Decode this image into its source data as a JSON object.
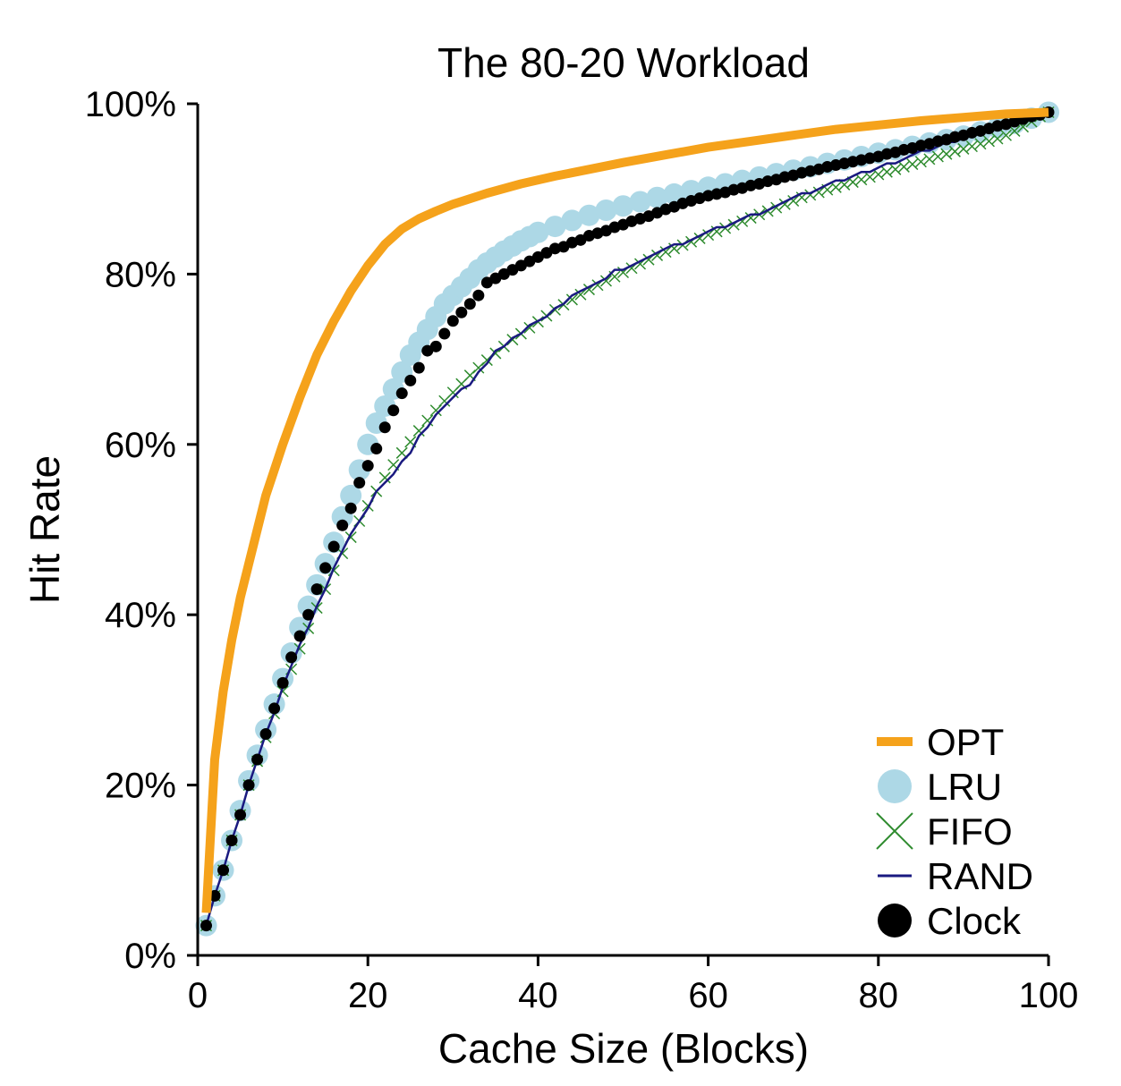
{
  "chart_data": {
    "type": "line",
    "title": "The 80-20 Workload",
    "xlabel": "Cache Size (Blocks)",
    "ylabel": "Hit Rate",
    "xlim": [
      0,
      100
    ],
    "ylim": [
      0,
      100
    ],
    "xticks": [
      0,
      20,
      40,
      60,
      80,
      100
    ],
    "yticks": [
      0,
      20,
      40,
      60,
      80,
      100
    ],
    "xtick_labels": [
      "0",
      "20",
      "40",
      "60",
      "80",
      "100"
    ],
    "ytick_labels": [
      "0%",
      "20%",
      "40%",
      "60%",
      "80%",
      "100%"
    ],
    "legend_position": "bottom-right",
    "grid": false,
    "series": [
      {
        "name": "OPT",
        "style": "thick-line",
        "color": "#f5a21b",
        "x": [
          1,
          2,
          3,
          4,
          5,
          6,
          7,
          8,
          9,
          10,
          12,
          14,
          16,
          18,
          20,
          22,
          24,
          26,
          28,
          30,
          34,
          38,
          42,
          46,
          50,
          55,
          60,
          65,
          70,
          75,
          80,
          85,
          90,
          95,
          100
        ],
        "y": [
          5,
          23,
          31,
          37,
          42,
          46,
          50,
          54,
          57,
          60,
          65.5,
          70.5,
          74.5,
          78,
          81,
          83.5,
          85.3,
          86.5,
          87.4,
          88.2,
          89.5,
          90.6,
          91.5,
          92.3,
          93.1,
          94,
          94.9,
          95.6,
          96.3,
          97,
          97.5,
          98,
          98.4,
          98.8,
          99
        ]
      },
      {
        "name": "LRU",
        "style": "large-dots",
        "color": "#add8e6",
        "x": [
          1,
          2,
          3,
          4,
          5,
          6,
          7,
          8,
          9,
          10,
          11,
          12,
          13,
          14,
          15,
          16,
          17,
          18,
          19,
          20,
          21,
          22,
          23,
          24,
          25,
          26,
          27,
          28,
          29,
          30,
          31,
          32,
          33,
          34,
          35,
          36,
          37,
          38,
          39,
          40,
          42,
          44,
          46,
          48,
          50,
          52,
          54,
          56,
          58,
          60,
          62,
          64,
          66,
          68,
          70,
          72,
          74,
          76,
          78,
          80,
          82,
          84,
          86,
          88,
          90,
          92,
          94,
          96,
          98,
          100
        ],
        "y": [
          3.5,
          7,
          10,
          13.5,
          17,
          20.5,
          23.5,
          26.5,
          29.5,
          32.5,
          35.5,
          38.5,
          41,
          43.5,
          46,
          48.5,
          51.5,
          54,
          57,
          60,
          62.5,
          64.5,
          66.5,
          68.5,
          70.5,
          72,
          73.5,
          75,
          76.5,
          77.5,
          78.5,
          79.5,
          80.5,
          81.3,
          82,
          82.7,
          83.3,
          83.9,
          84.4,
          84.9,
          85.6,
          86.3,
          86.9,
          87.5,
          88,
          88.5,
          89,
          89.4,
          89.8,
          90.2,
          90.6,
          91,
          91.4,
          91.8,
          92.2,
          92.6,
          93,
          93.4,
          93.8,
          94.2,
          94.6,
          95,
          95.4,
          95.8,
          96.2,
          96.7,
          97.2,
          97.7,
          98.3,
          99
        ]
      },
      {
        "name": "FIFO",
        "style": "x-markers",
        "color": "#2e8b2e",
        "x": [
          1,
          2,
          3,
          4,
          5,
          6,
          7,
          8,
          9,
          10,
          11,
          12,
          13,
          14,
          15,
          16,
          17,
          18,
          19,
          20,
          21,
          22,
          23,
          24,
          25,
          26,
          27,
          28,
          29,
          30,
          31,
          32,
          33,
          34,
          35,
          36,
          37,
          38,
          39,
          40,
          41,
          42,
          43,
          44,
          45,
          46,
          47,
          48,
          49,
          50,
          51,
          52,
          53,
          54,
          55,
          56,
          57,
          58,
          59,
          60,
          61,
          62,
          63,
          64,
          65,
          66,
          67,
          68,
          69,
          70,
          71,
          72,
          73,
          74,
          75,
          76,
          77,
          78,
          79,
          80,
          81,
          82,
          83,
          84,
          85,
          86,
          87,
          88,
          89,
          90,
          91,
          92,
          93,
          94,
          95,
          96,
          97,
          98,
          99,
          100
        ],
        "y": [
          3.5,
          7,
          10,
          13.5,
          16.5,
          20,
          22.8,
          25.6,
          28.4,
          31,
          33.6,
          36,
          38.4,
          40.8,
          43,
          45.2,
          47.2,
          49.1,
          51,
          52.8,
          54.5,
          56.1,
          57.6,
          59,
          60.3,
          61.6,
          62.8,
          64,
          65.1,
          66.1,
          67.1,
          68.1,
          69,
          69.9,
          70.7,
          71.5,
          72.3,
          73,
          73.7,
          74.4,
          75.1,
          75.8,
          76.4,
          77,
          77.6,
          78.2,
          78.7,
          79.2,
          79.7,
          80.2,
          80.7,
          81.2,
          81.7,
          82.2,
          82.6,
          83,
          83.4,
          83.8,
          84.2,
          84.6,
          85,
          85.4,
          85.8,
          86.2,
          86.6,
          87,
          87.4,
          87.8,
          88.2,
          88.6,
          89,
          89.3,
          89.6,
          89.9,
          90.2,
          90.5,
          90.8,
          91.1,
          91.4,
          91.7,
          92,
          92.3,
          92.6,
          92.9,
          93.2,
          93.5,
          93.8,
          94.1,
          94.4,
          94.7,
          95,
          95.3,
          95.6,
          95.9,
          96.3,
          96.8,
          97.3,
          97.9,
          98.5,
          99
        ]
      },
      {
        "name": "RAND",
        "style": "thin-line",
        "color": "#1a1a80",
        "x": [
          1,
          2,
          3,
          4,
          5,
          6,
          7,
          8,
          9,
          10,
          11,
          12,
          13,
          14,
          15,
          16,
          17,
          18,
          19,
          20,
          21,
          22,
          23,
          24,
          25,
          26,
          27,
          28,
          29,
          30,
          31,
          32,
          33,
          34,
          35,
          36,
          37,
          38,
          39,
          40,
          41,
          42,
          43,
          44,
          45,
          46,
          47,
          48,
          49,
          50,
          51,
          52,
          53,
          54,
          55,
          56,
          57,
          58,
          59,
          60,
          61,
          62,
          63,
          64,
          65,
          66,
          67,
          68,
          69,
          70,
          71,
          72,
          73,
          74,
          75,
          76,
          77,
          78,
          79,
          80,
          81,
          82,
          83,
          84,
          85,
          86,
          87,
          88,
          89,
          90,
          91,
          92,
          93,
          94,
          95,
          96,
          97,
          98,
          99,
          100
        ],
        "y": [
          3.5,
          7,
          10,
          13.5,
          16.5,
          20,
          23,
          26,
          28.5,
          31.5,
          34,
          36.5,
          38.5,
          41,
          43,
          45.5,
          47.5,
          49.5,
          51,
          52.5,
          54.5,
          55.5,
          56.5,
          58,
          59,
          61,
          62,
          63.5,
          64.5,
          65.5,
          66.5,
          67,
          68.5,
          69.5,
          71,
          71.5,
          72.5,
          73,
          74,
          74.5,
          75,
          76,
          76.5,
          77.5,
          78,
          78.5,
          79,
          79.5,
          80.5,
          80.5,
          81,
          81.5,
          82,
          82.5,
          83,
          83.5,
          83.5,
          84,
          84.5,
          85,
          85.5,
          85.5,
          86,
          86.5,
          87,
          87,
          87.5,
          88,
          88.5,
          89,
          89.5,
          89.5,
          90,
          90.5,
          91,
          91,
          91.5,
          92,
          92,
          92.5,
          93,
          93,
          93.5,
          94,
          94.5,
          94.5,
          95,
          95.5,
          95.5,
          96,
          96.3,
          96.6,
          97,
          97.3,
          97.7,
          98,
          98.3,
          98.6,
          98.8,
          99
        ]
      },
      {
        "name": "Clock",
        "style": "small-dots",
        "color": "#000000",
        "x": [
          1,
          2,
          3,
          4,
          5,
          6,
          7,
          8,
          9,
          10,
          11,
          12,
          13,
          14,
          15,
          16,
          17,
          18,
          19,
          20,
          21,
          22,
          23,
          24,
          25,
          26,
          27,
          28,
          29,
          30,
          31,
          32,
          33,
          34,
          35,
          36,
          37,
          38,
          39,
          40,
          41,
          42,
          43,
          44,
          45,
          46,
          47,
          48,
          49,
          50,
          51,
          52,
          53,
          54,
          55,
          56,
          57,
          58,
          59,
          60,
          61,
          62,
          63,
          64,
          65,
          66,
          67,
          68,
          69,
          70,
          71,
          72,
          73,
          74,
          75,
          76,
          77,
          78,
          79,
          80,
          81,
          82,
          83,
          84,
          85,
          86,
          87,
          88,
          89,
          90,
          91,
          92,
          93,
          94,
          95,
          96,
          97,
          98,
          99,
          100
        ],
        "y": [
          3.5,
          7,
          10,
          13.5,
          16.5,
          20,
          23,
          26,
          29,
          32,
          35,
          37.5,
          40,
          43,
          45.5,
          48,
          50.5,
          52.5,
          55.5,
          57.5,
          59.5,
          62,
          64,
          66,
          67.5,
          69,
          71,
          71.5,
          73,
          74.5,
          75.5,
          76.5,
          77.5,
          79,
          79.5,
          80,
          80.5,
          81,
          81.5,
          82,
          82.5,
          83,
          83.2,
          83.7,
          84,
          84.5,
          84.8,
          85.1,
          85.5,
          85.8,
          86.2,
          86.5,
          86.8,
          87.2,
          87.6,
          87.9,
          88.3,
          88.6,
          88.9,
          89.2,
          89.4,
          89.6,
          89.9,
          90.1,
          90.4,
          90.6,
          90.9,
          91.1,
          91.4,
          91.6,
          91.9,
          92.1,
          92.3,
          92.6,
          92.8,
          93,
          93.2,
          93.4,
          93.6,
          93.8,
          94.1,
          94.3,
          94.6,
          94.8,
          95.1,
          95.3,
          95.6,
          95.8,
          96.1,
          96.3,
          96.6,
          96.8,
          97.1,
          97.4,
          97.6,
          97.9,
          98.2,
          98.5,
          98.7,
          99
        ]
      }
    ]
  }
}
